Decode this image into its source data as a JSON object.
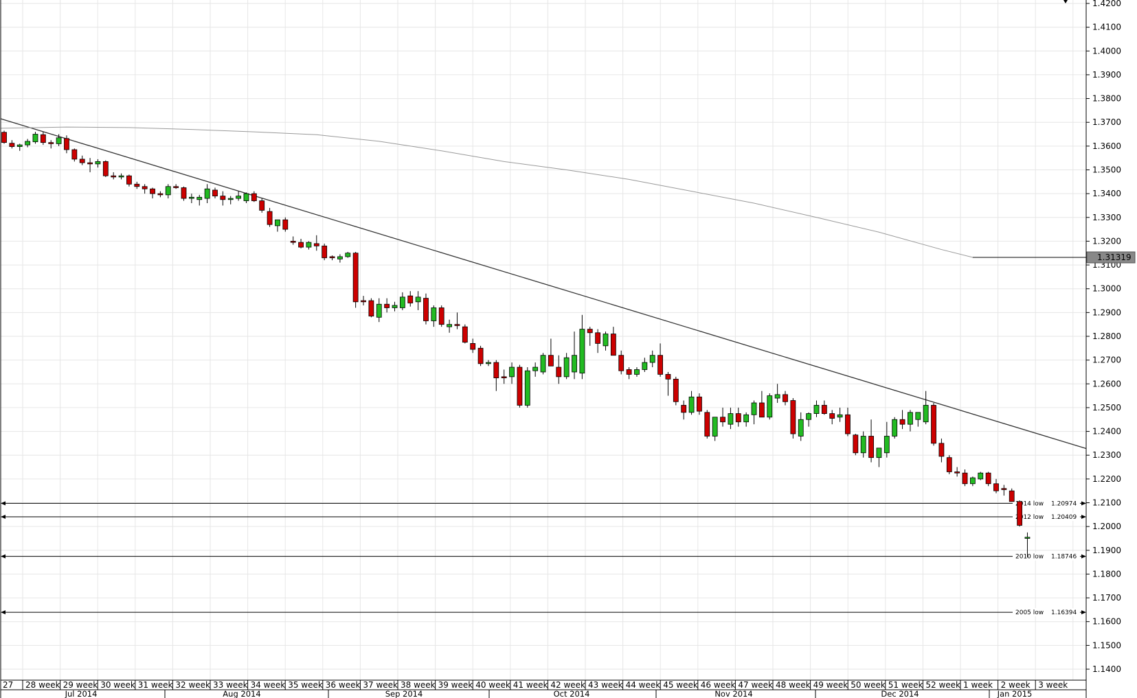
{
  "chart_data": {
    "type": "candlestick",
    "ylim": [
      1.135,
      1.42
    ],
    "y_ticks": [
      "1.1400",
      "1.1500",
      "1.1600",
      "1.1700",
      "1.1800",
      "1.1900",
      "1.2000",
      "1.2100",
      "1.2200",
      "1.2300",
      "1.2400",
      "1.2500",
      "1.2600",
      "1.2700",
      "1.2800",
      "1.2900",
      "1.3000",
      "1.3100",
      "1.3200",
      "1.3300",
      "1.3400",
      "1.3500",
      "1.3600",
      "1.3700",
      "1.3800",
      "1.3900",
      "1.4000",
      "1.4100",
      "1.4200"
    ],
    "week_labels": [
      "27",
      "28 week",
      "29 week",
      "30 week",
      "31 week",
      "32 week",
      "33 week",
      "34 week",
      "35 week",
      "36 week",
      "37 week",
      "38 week",
      "39 week",
      "40 week",
      "41 week",
      "42 week",
      "43 week",
      "44 week",
      "45 week",
      "46 week",
      "47 week",
      "48 week",
      "49 week",
      "50 week",
      "51 week",
      "52 week",
      "1 week",
      "2 week",
      "3 week"
    ],
    "month_labels": [
      "Jul 2014",
      "Aug 2014",
      "Sep 2014",
      "Oct 2014",
      "Nov 2014",
      "Dec 2014",
      "Jan 2015"
    ],
    "current_price": "1.31319",
    "colors": {
      "up": "#22bb22",
      "down": "#cc0000",
      "wick": "#000000",
      "grid": "#e6e6e6",
      "ma": "#999999",
      "trend": "#333333"
    },
    "horizontal_levels": [
      {
        "label": "2014 low",
        "value": "1.20974",
        "price": 1.20974
      },
      {
        "label": "2012 low",
        "value": "1.20409",
        "price": 1.20409
      },
      {
        "label": "2010 low",
        "value": "1.18746",
        "price": 1.18746
      },
      {
        "label": "2005 low",
        "value": "1.16394",
        "price": 1.16394
      }
    ],
    "trendline": {
      "start": {
        "candle": -0.5,
        "price": 1.3715
      },
      "end": {
        "candle": 140,
        "price": 1.2328
      }
    },
    "moving_average": [
      {
        "candle": -0.5,
        "price": 1.3675
      },
      {
        "candle": 8,
        "price": 1.368
      },
      {
        "candle": 16,
        "price": 1.3678
      },
      {
        "candle": 24,
        "price": 1.367
      },
      {
        "candle": 32,
        "price": 1.366
      },
      {
        "candle": 40,
        "price": 1.3648
      },
      {
        "candle": 48,
        "price": 1.362
      },
      {
        "candle": 56,
        "price": 1.358
      },
      {
        "candle": 64,
        "price": 1.3535
      },
      {
        "candle": 72,
        "price": 1.35
      },
      {
        "candle": 80,
        "price": 1.346
      },
      {
        "candle": 88,
        "price": 1.341
      },
      {
        "candle": 96,
        "price": 1.336
      },
      {
        "candle": 104,
        "price": 1.33
      },
      {
        "candle": 112,
        "price": 1.3238
      },
      {
        "candle": 120,
        "price": 1.3165
      },
      {
        "candle": 124,
        "price": 1.31319
      },
      {
        "candle": 140,
        "price": 1.31319
      }
    ],
    "candles": [
      [
        1.3658,
        1.3665,
        1.361,
        1.3615
      ],
      [
        1.3612,
        1.3625,
        1.359,
        1.3598
      ],
      [
        1.3598,
        1.361,
        1.358,
        1.3605
      ],
      [
        1.3605,
        1.363,
        1.3595,
        1.362
      ],
      [
        1.3618,
        1.366,
        1.361,
        1.365
      ],
      [
        1.3648,
        1.366,
        1.3605,
        1.3615
      ],
      [
        1.3615,
        1.3625,
        1.359,
        1.361
      ],
      [
        1.361,
        1.365,
        1.36,
        1.3635
      ],
      [
        1.3632,
        1.3645,
        1.357,
        1.3585
      ],
      [
        1.3585,
        1.359,
        1.3535,
        1.3545
      ],
      [
        1.3545,
        1.356,
        1.352,
        1.353
      ],
      [
        1.353,
        1.355,
        1.349,
        1.3525
      ],
      [
        1.3525,
        1.3545,
        1.351,
        1.3535
      ],
      [
        1.3535,
        1.354,
        1.347,
        1.3475
      ],
      [
        1.3475,
        1.349,
        1.346,
        1.347
      ],
      [
        1.347,
        1.3485,
        1.346,
        1.3475
      ],
      [
        1.3475,
        1.348,
        1.343,
        1.344
      ],
      [
        1.344,
        1.345,
        1.342,
        1.343
      ],
      [
        1.343,
        1.344,
        1.34,
        1.342
      ],
      [
        1.342,
        1.3425,
        1.338,
        1.34
      ],
      [
        1.34,
        1.341,
        1.3385,
        1.3395
      ],
      [
        1.3395,
        1.344,
        1.338,
        1.343
      ],
      [
        1.343,
        1.344,
        1.342,
        1.3425
      ],
      [
        1.3425,
        1.343,
        1.337,
        1.338
      ],
      [
        1.338,
        1.34,
        1.336,
        1.3385
      ],
      [
        1.3375,
        1.3395,
        1.335,
        1.3385
      ],
      [
        1.338,
        1.344,
        1.336,
        1.342
      ],
      [
        1.3415,
        1.3425,
        1.338,
        1.339
      ],
      [
        1.339,
        1.341,
        1.335,
        1.3375
      ],
      [
        1.3375,
        1.339,
        1.3355,
        1.338
      ],
      [
        1.338,
        1.341,
        1.337,
        1.339
      ],
      [
        1.337,
        1.3405,
        1.336,
        1.34
      ],
      [
        1.34,
        1.341,
        1.3365,
        1.337
      ],
      [
        1.337,
        1.338,
        1.332,
        1.333
      ],
      [
        1.3325,
        1.334,
        1.326,
        1.327
      ],
      [
        1.3265,
        1.329,
        1.324,
        1.329
      ],
      [
        1.329,
        1.33,
        1.324,
        1.325
      ],
      [
        1.32,
        1.322,
        1.3185,
        1.3195
      ],
      [
        1.3195,
        1.321,
        1.317,
        1.3175
      ],
      [
        1.3175,
        1.32,
        1.3165,
        1.3195
      ],
      [
        1.319,
        1.3225,
        1.316,
        1.318
      ],
      [
        1.318,
        1.319,
        1.312,
        1.313
      ],
      [
        1.3135,
        1.314,
        1.312,
        1.313
      ],
      [
        1.3125,
        1.3145,
        1.311,
        1.3135
      ],
      [
        1.3135,
        1.3155,
        1.313,
        1.315
      ],
      [
        1.315,
        1.3155,
        1.292,
        1.2945
      ],
      [
        1.295,
        1.297,
        1.293,
        1.2945
      ],
      [
        1.295,
        1.296,
        1.288,
        1.2885
      ],
      [
        1.288,
        1.296,
        1.286,
        1.2935
      ],
      [
        1.2935,
        1.296,
        1.29,
        1.292
      ],
      [
        1.292,
        1.2945,
        1.2905,
        1.293
      ],
      [
        1.292,
        1.2985,
        1.291,
        1.2965
      ],
      [
        1.297,
        1.299,
        1.2925,
        1.294
      ],
      [
        1.2945,
        1.299,
        1.291,
        1.2965
      ],
      [
        1.296,
        1.298,
        1.285,
        1.2865
      ],
      [
        1.2865,
        1.293,
        1.284,
        1.292
      ],
      [
        1.292,
        1.293,
        1.284,
        1.285
      ],
      [
        1.284,
        1.287,
        1.2815,
        1.285
      ],
      [
        1.285,
        1.29,
        1.283,
        1.2845
      ],
      [
        1.284,
        1.285,
        1.277,
        1.2775
      ],
      [
        1.277,
        1.279,
        1.273,
        1.2745
      ],
      [
        1.275,
        1.276,
        1.2675,
        1.2685
      ],
      [
        1.2685,
        1.27,
        1.2675,
        1.269
      ],
      [
        1.269,
        1.27,
        1.257,
        1.2625
      ],
      [
        1.263,
        1.266,
        1.26,
        1.2625
      ],
      [
        1.263,
        1.269,
        1.26,
        1.267
      ],
      [
        1.267,
        1.268,
        1.25,
        1.251
      ],
      [
        1.251,
        1.267,
        1.25,
        1.2655
      ],
      [
        1.2655,
        1.269,
        1.263,
        1.267
      ],
      [
        1.265,
        1.273,
        1.264,
        1.272
      ],
      [
        1.272,
        1.279,
        1.268,
        1.2675
      ],
      [
        1.267,
        1.272,
        1.26,
        1.263
      ],
      [
        1.263,
        1.273,
        1.262,
        1.271
      ],
      [
        1.265,
        1.282,
        1.262,
        1.272
      ],
      [
        1.2645,
        1.289,
        1.262,
        1.283
      ],
      [
        1.283,
        1.284,
        1.276,
        1.2815
      ],
      [
        1.2815,
        1.283,
        1.273,
        1.277
      ],
      [
        1.276,
        1.282,
        1.274,
        1.281
      ],
      [
        1.281,
        1.284,
        1.272,
        1.272
      ],
      [
        1.272,
        1.274,
        1.264,
        1.2655
      ],
      [
        1.266,
        1.267,
        1.262,
        1.264
      ],
      [
        1.264,
        1.267,
        1.263,
        1.266
      ],
      [
        1.266,
        1.271,
        1.265,
        1.269
      ],
      [
        1.269,
        1.274,
        1.267,
        1.272
      ],
      [
        1.272,
        1.277,
        1.263,
        1.264
      ],
      [
        1.264,
        1.265,
        1.255,
        1.262
      ],
      [
        1.262,
        1.263,
        1.251,
        1.2525
      ],
      [
        1.251,
        1.253,
        1.245,
        1.248
      ],
      [
        1.248,
        1.257,
        1.247,
        1.2545
      ],
      [
        1.2545,
        1.256,
        1.247,
        1.2485
      ],
      [
        1.248,
        1.249,
        1.237,
        1.238
      ],
      [
        1.238,
        1.246,
        1.236,
        1.246
      ],
      [
        1.246,
        1.25,
        1.242,
        1.244
      ],
      [
        1.243,
        1.25,
        1.241,
        1.2475
      ],
      [
        1.2475,
        1.25,
        1.242,
        1.244
      ],
      [
        1.244,
        1.248,
        1.242,
        1.247
      ],
      [
        1.247,
        1.253,
        1.243,
        1.252
      ],
      [
        1.252,
        1.257,
        1.246,
        1.246
      ],
      [
        1.246,
        1.256,
        1.245,
        1.255
      ],
      [
        1.254,
        1.26,
        1.252,
        1.2555
      ],
      [
        1.2555,
        1.257,
        1.251,
        1.2525
      ],
      [
        1.253,
        1.254,
        1.237,
        1.239
      ],
      [
        1.238,
        1.248,
        1.236,
        1.245
      ],
      [
        1.245,
        1.248,
        1.242,
        1.2475
      ],
      [
        1.2475,
        1.253,
        1.246,
        1.251
      ],
      [
        1.251,
        1.253,
        1.247,
        1.2475
      ],
      [
        1.2475,
        1.249,
        1.243,
        1.2455
      ],
      [
        1.246,
        1.25,
        1.244,
        1.247
      ],
      [
        1.247,
        1.25,
        1.238,
        1.239
      ],
      [
        1.2385,
        1.239,
        1.23,
        1.231
      ],
      [
        1.231,
        1.24,
        1.229,
        1.238
      ],
      [
        1.238,
        1.245,
        1.227,
        1.229
      ],
      [
        1.229,
        1.232,
        1.225,
        1.233
      ],
      [
        1.231,
        1.244,
        1.229,
        1.238
      ],
      [
        1.238,
        1.246,
        1.237,
        1.245
      ],
      [
        1.245,
        1.249,
        1.241,
        1.243
      ],
      [
        1.243,
        1.249,
        1.24,
        1.248
      ],
      [
        1.245,
        1.248,
        1.242,
        1.248
      ],
      [
        1.244,
        1.257,
        1.243,
        1.251
      ],
      [
        1.251,
        1.252,
        1.234,
        1.235
      ],
      [
        1.235,
        1.237,
        1.227,
        1.2295
      ],
      [
        1.229,
        1.23,
        1.222,
        1.223
      ],
      [
        1.223,
        1.225,
        1.221,
        1.2225
      ],
      [
        1.2225,
        1.224,
        1.217,
        1.218
      ],
      [
        1.218,
        1.221,
        1.217,
        1.2205
      ],
      [
        1.22,
        1.223,
        1.2195,
        1.2225
      ],
      [
        1.2225,
        1.223,
        1.217,
        1.218
      ],
      [
        1.218,
        1.22,
        1.214,
        1.215
      ],
      [
        1.216,
        1.2175,
        1.213,
        1.2155
      ],
      [
        1.215,
        1.216,
        1.2105,
        1.2105
      ],
      [
        1.2105,
        1.211,
        1.2,
        1.2005
      ],
      [
        1.195,
        1.1975,
        1.187,
        1.1955
      ]
    ]
  }
}
